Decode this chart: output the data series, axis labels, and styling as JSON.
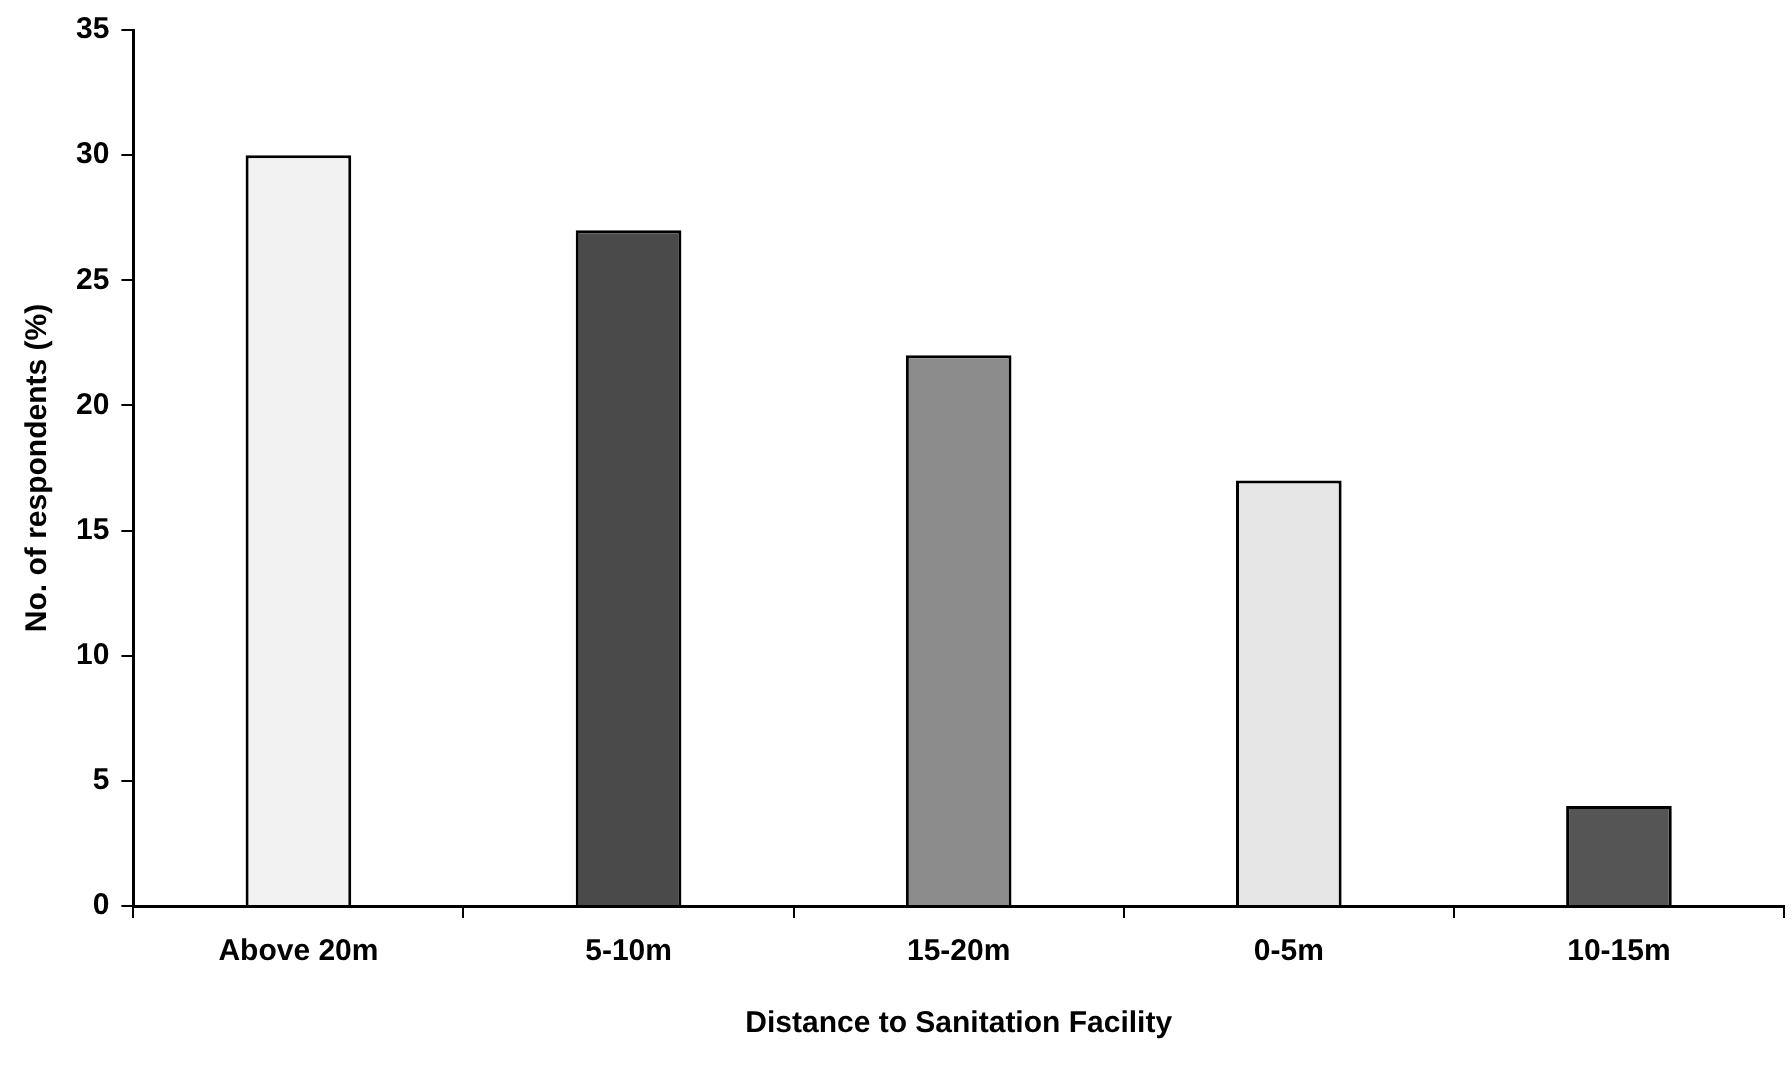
{
  "chart_data": {
    "type": "bar",
    "xlabel": "Distance to Sanitation Facility",
    "ylabel": "No. of respondents (%)",
    "categories": [
      "Above 20m",
      "5-10m",
      "15-20m",
      "0-5m",
      "10-15m"
    ],
    "values": [
      30,
      27,
      22,
      17,
      4
    ],
    "colors": [
      "#f2f2f2",
      "#4a4a4a",
      "#8c8c8c",
      "#e6e6e6",
      "#555555"
    ],
    "ylim": [
      0,
      35
    ],
    "yticks": [
      0,
      5,
      10,
      15,
      20,
      25,
      30,
      35
    ],
    "legend": false
  }
}
